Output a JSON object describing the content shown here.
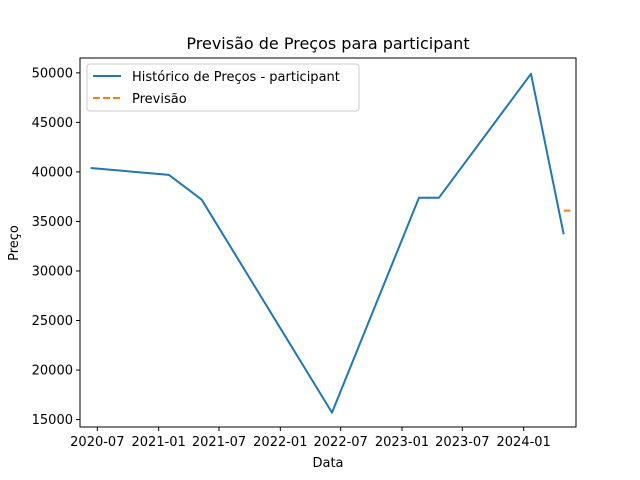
{
  "chart_data": {
    "type": "line",
    "title": "Previsão de Preços para participant",
    "xlabel": "Data",
    "ylabel": "Preço",
    "xlim": [
      "2020-05-10",
      "2024-06-06"
    ],
    "ylim": [
      14250,
      51500
    ],
    "x_ticks": [
      "2020-07",
      "2021-01",
      "2021-07",
      "2022-01",
      "2022-07",
      "2023-01",
      "2023-07",
      "2024-01"
    ],
    "y_ticks": [
      15000,
      20000,
      25000,
      30000,
      35000,
      40000,
      45000,
      50000
    ],
    "grid": false,
    "legend_position": "top-left",
    "series": [
      {
        "name": "Histórico de Preços - participant",
        "color": "#1f77b4",
        "style": "solid",
        "x": [
          "2020-06-11",
          "2021-02-01",
          "2021-05-10",
          "2022-06-05",
          "2023-02-21",
          "2023-04-22",
          "2024-01-23",
          "2024-04-30"
        ],
        "y": [
          40400,
          39700,
          37200,
          15700,
          37400,
          37400,
          49900,
          33700
        ]
      },
      {
        "name": "Previsão",
        "color": "#ff7f0e",
        "style": "dashed",
        "x": [
          "2024-04-30",
          "2024-05-20"
        ],
        "y": [
          36100,
          36100
        ]
      }
    ]
  }
}
